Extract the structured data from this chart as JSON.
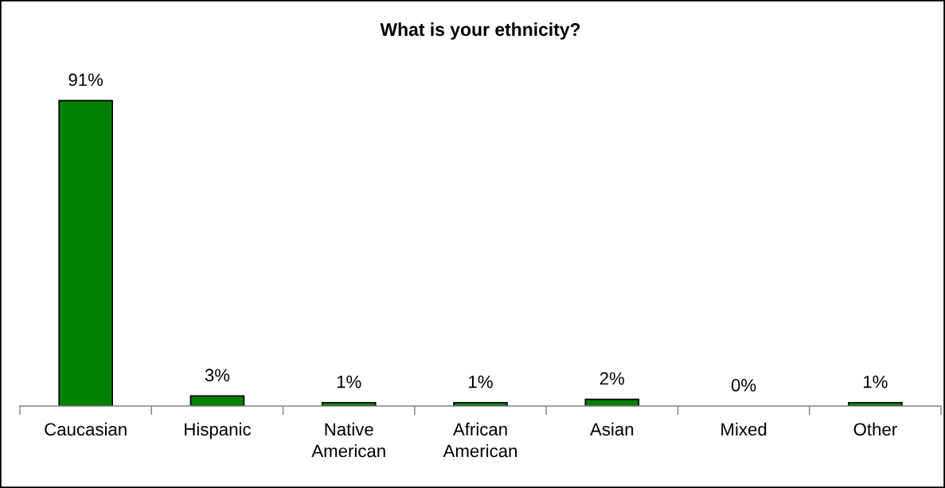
{
  "chart_data": {
    "type": "bar",
    "title": "What is your ethnicity?",
    "categories": [
      "Caucasian",
      "Hispanic",
      "Native American",
      "African American",
      "Asian",
      "Mixed",
      "Other"
    ],
    "values": [
      91,
      3,
      1,
      1,
      2,
      0,
      1
    ],
    "value_labels": [
      "91%",
      "3%",
      "1%",
      "1%",
      "2%",
      "0%",
      "1%"
    ],
    "color": "#008000"
  }
}
